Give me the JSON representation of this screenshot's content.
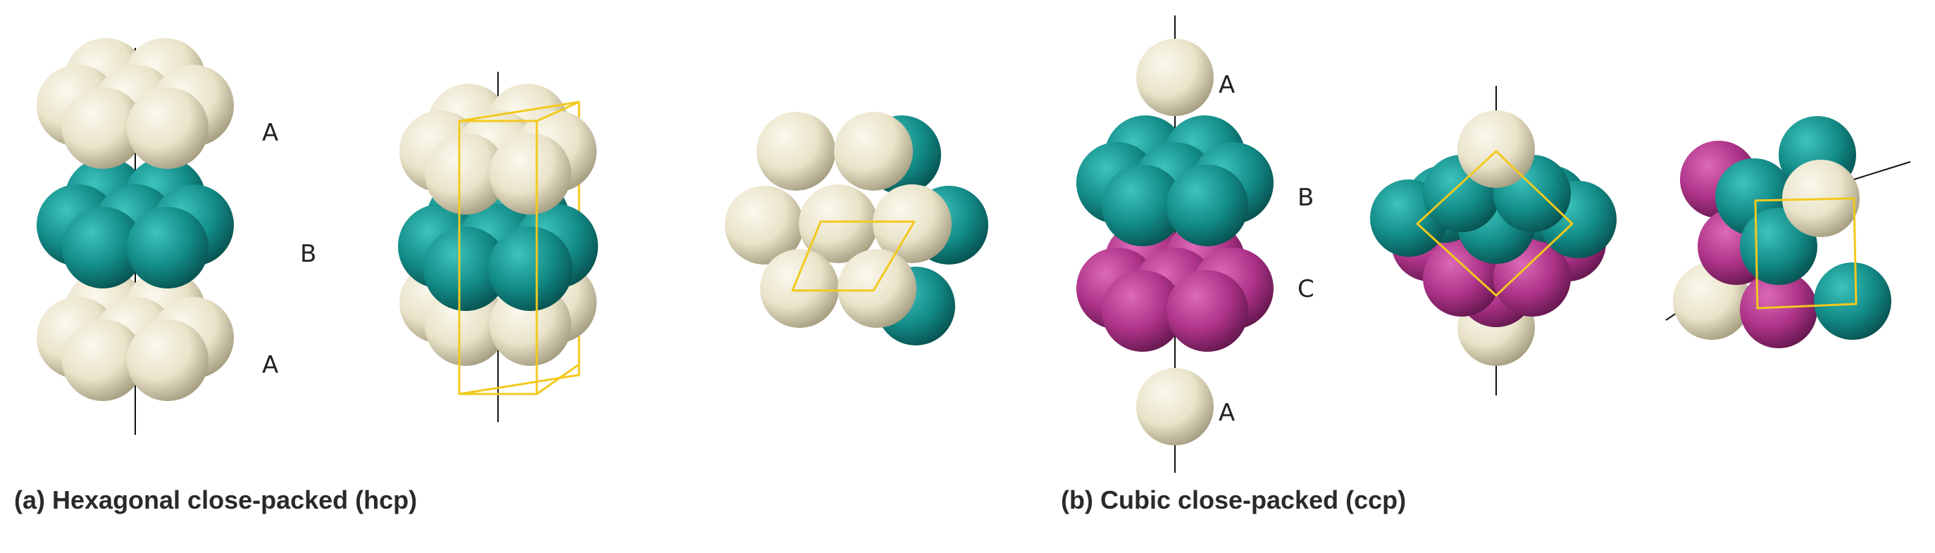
{
  "colors": {
    "cream": "#e9e3c9",
    "teal": "#15908c",
    "magenta": "#b3368e",
    "cell_outline": "#f2c91e",
    "axis": "#111111",
    "caption": "#2a2a2a"
  },
  "panel_a": {
    "caption": "(a) Hexagonal close-packed (hcp)",
    "layer_labels": [
      "A",
      "B",
      "A"
    ]
  },
  "panel_b": {
    "caption": "(b) Cubic close-packed (ccp)",
    "layer_labels": [
      "A",
      "B",
      "C",
      "A"
    ]
  }
}
